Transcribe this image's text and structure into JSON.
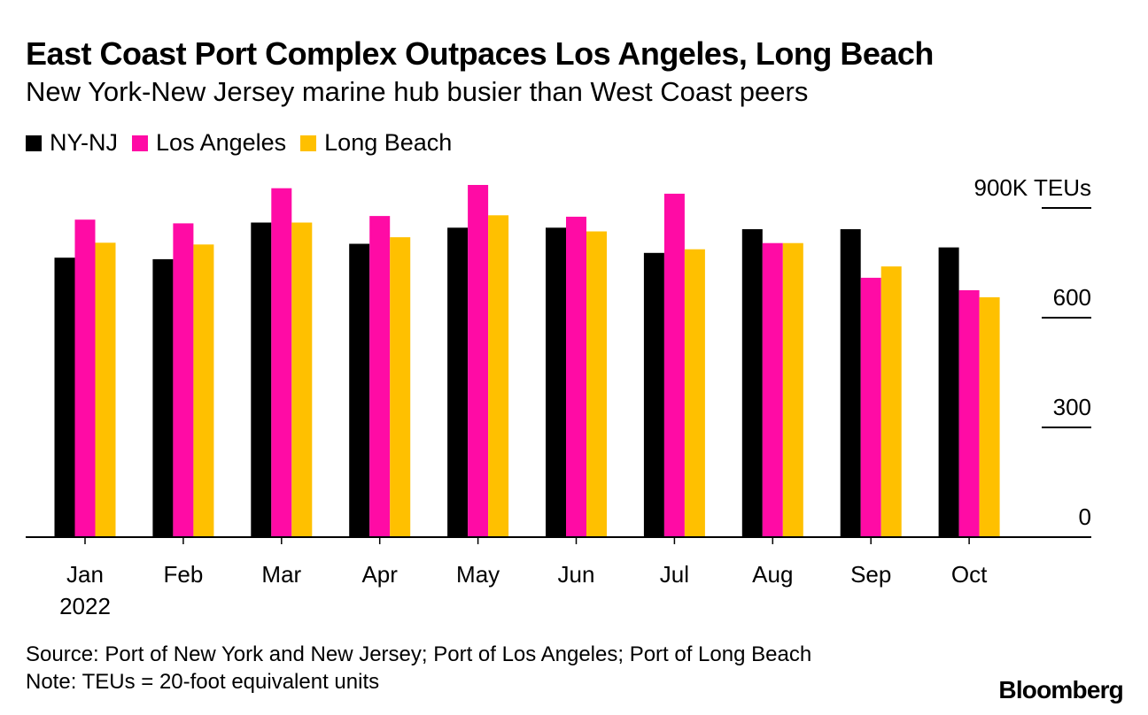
{
  "title": "East Coast Port Complex Outpaces Los Angeles, Long Beach",
  "subtitle": "New York-New Jersey marine hub busier than West Coast peers",
  "colors": {
    "ny_nj": "#000000",
    "los_angeles": "#ff0ba5",
    "long_beach": "#ffc000",
    "axis": "#000000"
  },
  "chart_data": {
    "type": "bar",
    "categories": [
      "Jan",
      "Feb",
      "Mar",
      "Apr",
      "May",
      "Jun",
      "Jul",
      "Aug",
      "Sep",
      "Oct"
    ],
    "year_label": "2022",
    "series": [
      {
        "name": "NY-NJ",
        "values": [
          764,
          760,
          860,
          802,
          846,
          846,
          777,
          842,
          842,
          792
        ]
      },
      {
        "name": "Los Angeles",
        "values": [
          868,
          858,
          954,
          878,
          963,
          876,
          939,
          804,
          709,
          675
        ]
      },
      {
        "name": "Long Beach",
        "values": [
          805,
          800,
          860,
          820,
          880,
          836,
          787,
          804,
          740,
          656
        ]
      }
    ],
    "yticks": [
      {
        "value": 900,
        "label": "900K TEUs"
      },
      {
        "value": 600,
        "label": "600"
      },
      {
        "value": 300,
        "label": "300"
      },
      {
        "value": 0,
        "label": "0"
      }
    ],
    "ylim": [
      0,
      1000
    ],
    "xlabel": "",
    "ylabel": "",
    "grid": false,
    "legend_position": "top-left"
  },
  "footer": {
    "source": "Source: Port of New York and New Jersey; Port of Los Angeles; Port of Long Beach",
    "note": "Note: TEUs = 20-foot equivalent units",
    "brand": "Bloomberg"
  }
}
